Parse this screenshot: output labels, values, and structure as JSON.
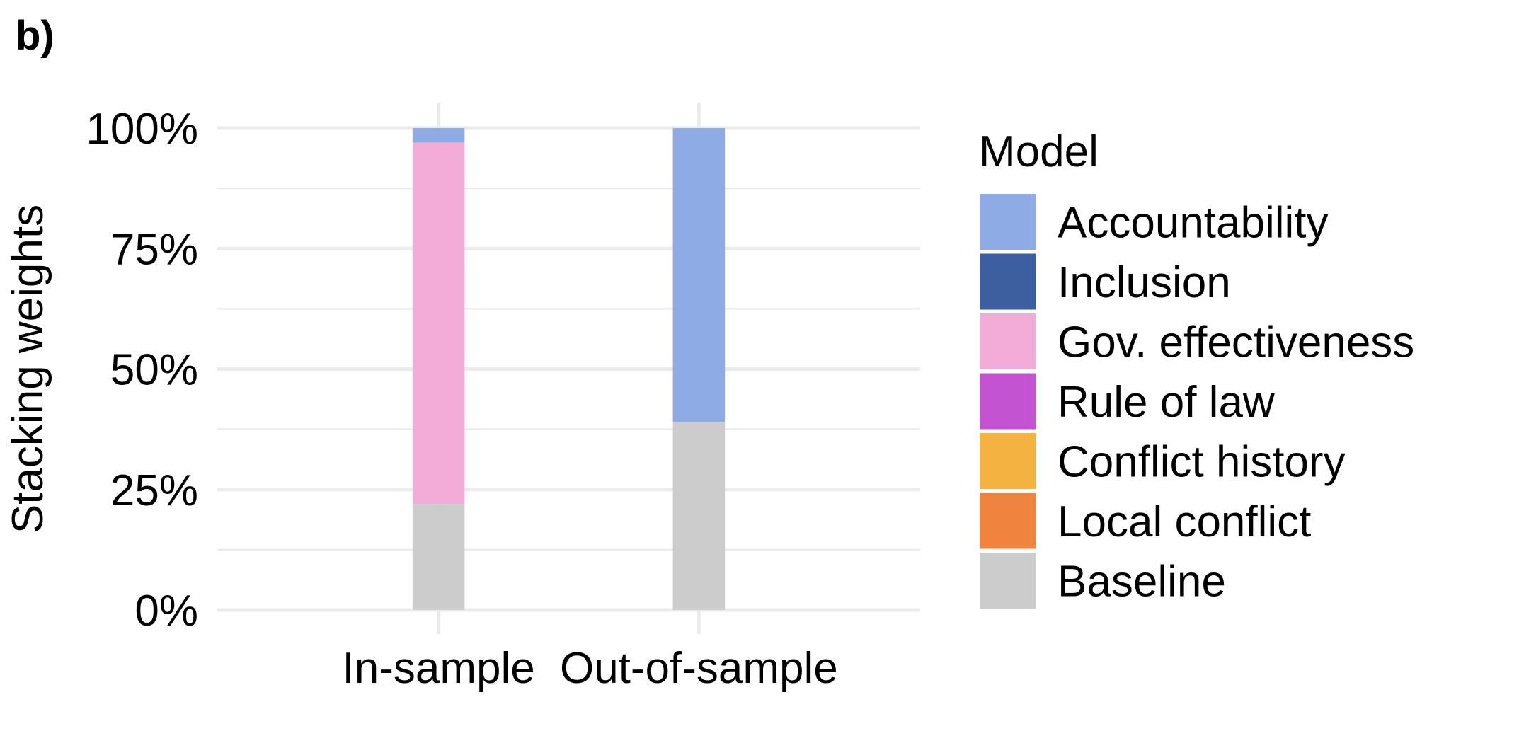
{
  "panel_label": "b)",
  "chart_data": {
    "type": "bar",
    "stacked": true,
    "categories": [
      "In-sample",
      "Out-of-sample"
    ],
    "ylabel": "Stacking weights",
    "xlabel": "",
    "ylim": [
      0,
      1
    ],
    "y_ticks": [
      0,
      0.25,
      0.5,
      0.75,
      1.0
    ],
    "y_tick_labels": [
      "0%",
      "25%",
      "50%",
      "75%",
      "100%"
    ],
    "grid": true,
    "legend": {
      "title": "Model",
      "position": "right"
    },
    "series": [
      {
        "name": "Accountability",
        "color": "#8eabe6",
        "values": [
          0.03,
          0.61
        ]
      },
      {
        "name": "Inclusion",
        "color": "#3d5fa0",
        "values": [
          0,
          0
        ]
      },
      {
        "name": "Gov. effectiveness",
        "color": "#f2acd7",
        "values": [
          0.75,
          0
        ]
      },
      {
        "name": "Rule of law",
        "color": "#c353d0",
        "values": [
          0,
          0
        ]
      },
      {
        "name": "Conflict history",
        "color": "#f4b241",
        "values": [
          0,
          0
        ]
      },
      {
        "name": "Local conflict",
        "color": "#f0833d",
        "values": [
          0,
          0
        ]
      },
      {
        "name": "Baseline",
        "color": "#cccccc",
        "values": [
          0.22,
          0.39
        ]
      }
    ]
  }
}
